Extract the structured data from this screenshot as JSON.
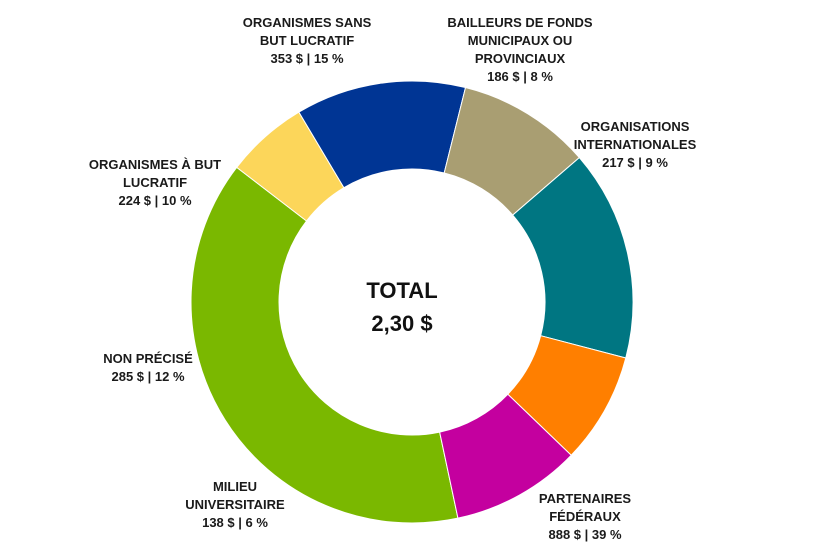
{
  "chart_data": {
    "type": "pie",
    "donut": true,
    "center_title": "TOTAL",
    "center_value": "2,30 $",
    "slices": [
      {
        "id": "federaux",
        "name": "PARTENAIRES\nFÉDÉRAUX",
        "amount": 888,
        "percent": 39,
        "value_label": "888 $ | 39 %",
        "color": "#7ab800"
      },
      {
        "id": "universitaire",
        "name": "MILIEU\nUNIVERSITAIRE",
        "amount": 138,
        "percent": 6,
        "value_label": "138 $ | 6 %",
        "color": "#fcd65a"
      },
      {
        "id": "non-precise",
        "name": "NON PRÉCISÉ",
        "amount": 285,
        "percent": 12,
        "value_label": "285 $ | 12 %",
        "color": "#003594"
      },
      {
        "id": "but-lucratif",
        "name": "ORGANISMES À BUT\nLUCRATIF",
        "amount": 224,
        "percent": 10,
        "value_label": "224 $ | 10 %",
        "color": "#a99e72"
      },
      {
        "id": "sans-but",
        "name": "ORGANISMES SANS\nBUT LUCRATIF",
        "amount": 353,
        "percent": 15,
        "value_label": "353 $ | 15 %",
        "color": "#007682"
      },
      {
        "id": "municipaux",
        "name": "BAILLEURS DE FONDS\nMUNICIPAUX OU\nPROVINCIAUX",
        "amount": 186,
        "percent": 8,
        "value_label": "186 $ | 8 %",
        "color": "#ff7f00"
      },
      {
        "id": "internationales",
        "name": "ORGANISATIONS\nINTERNATIONALES",
        "amount": 217,
        "percent": 9,
        "value_label": "217 $ | 9 %",
        "color": "#c4009f"
      }
    ]
  }
}
